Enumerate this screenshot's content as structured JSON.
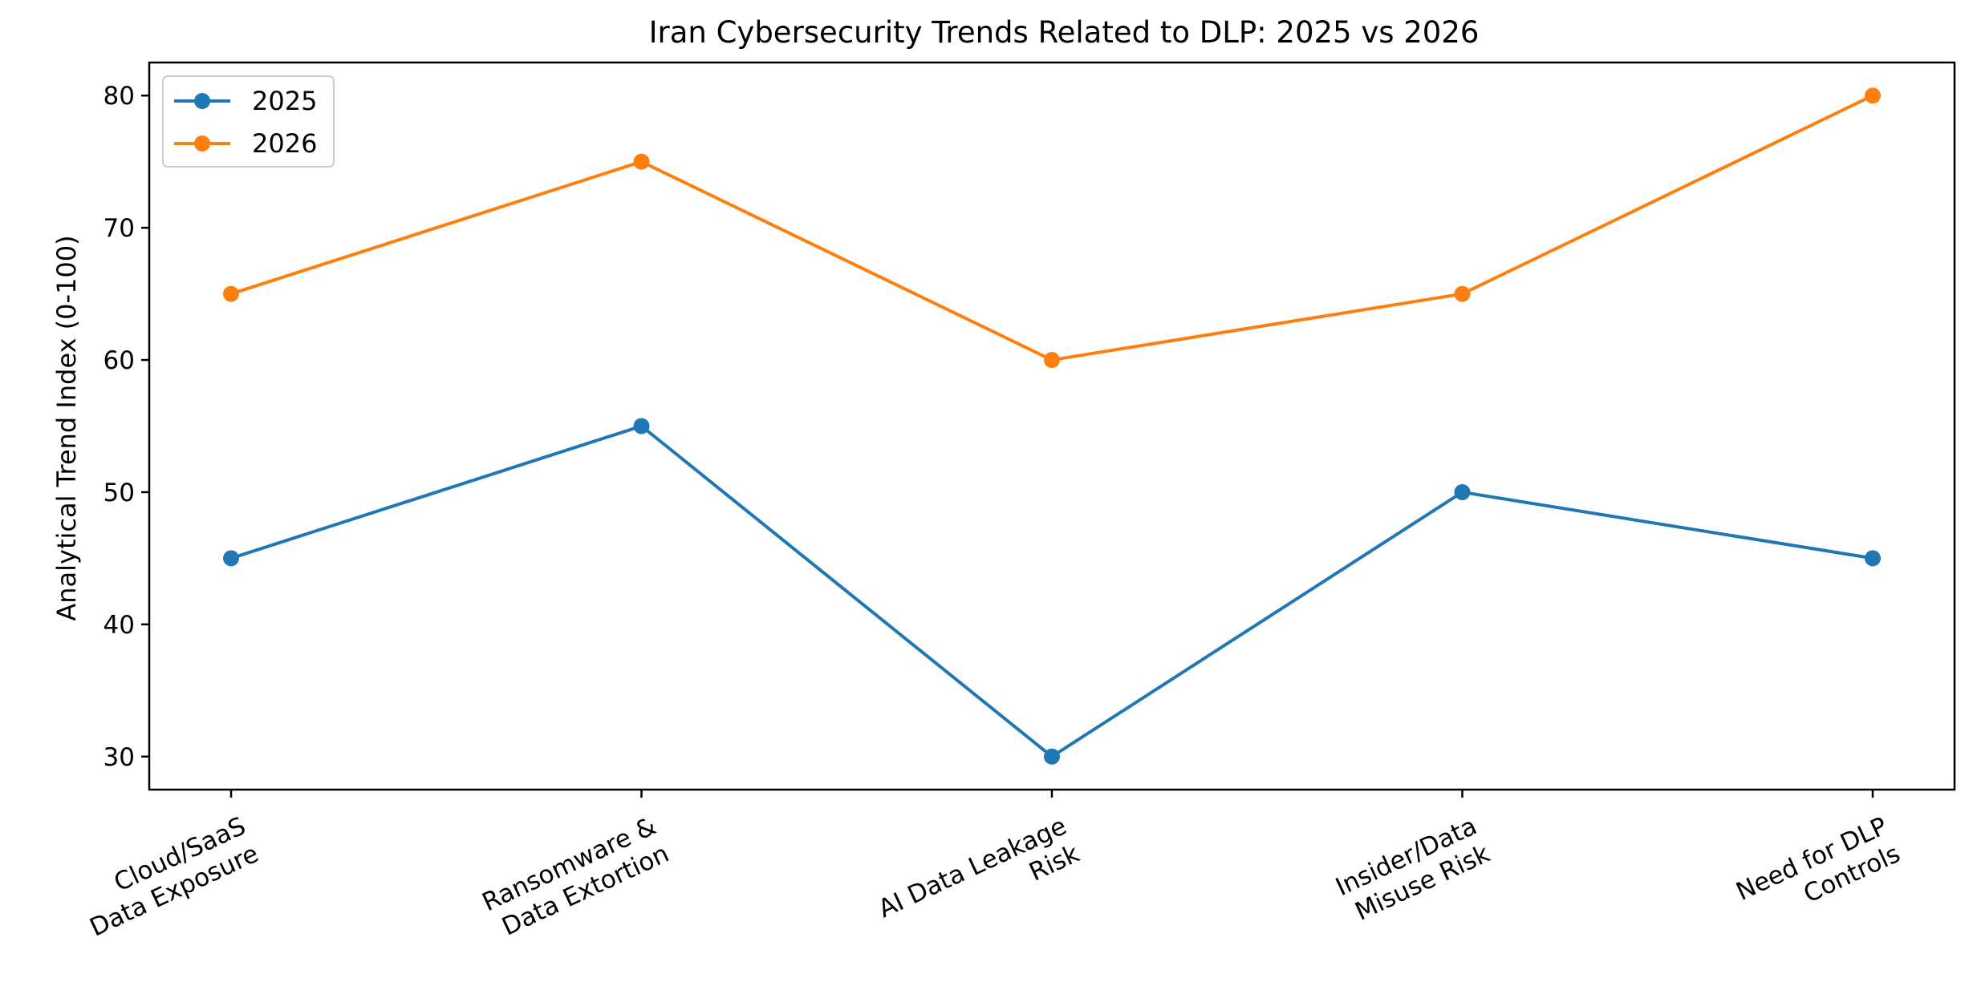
{
  "chart_data": {
    "type": "line",
    "title": "Iran Cybersecurity Trends Related to DLP: 2025 vs 2026",
    "xlabel": "",
    "ylabel": "Analytical Trend Index (0-100)",
    "categories": [
      [
        "Cloud/SaaS",
        "Data Exposure"
      ],
      [
        "Ransomware &",
        "Data Extortion"
      ],
      [
        "AI Data Leakage",
        "Risk"
      ],
      [
        "Insider/Data",
        "Misuse Risk"
      ],
      [
        "Need for DLP",
        "Controls"
      ]
    ],
    "series": [
      {
        "name": "2025",
        "color": "#1f77b4",
        "values": [
          45,
          55,
          30,
          50,
          45
        ]
      },
      {
        "name": "2026",
        "color": "#ff7f0e",
        "values": [
          65,
          75,
          60,
          65,
          80
        ]
      }
    ],
    "ylim": [
      27.5,
      82.5
    ],
    "yticks": [
      30,
      40,
      50,
      60,
      70,
      80
    ],
    "grid": false,
    "legend_position": "top-left"
  }
}
